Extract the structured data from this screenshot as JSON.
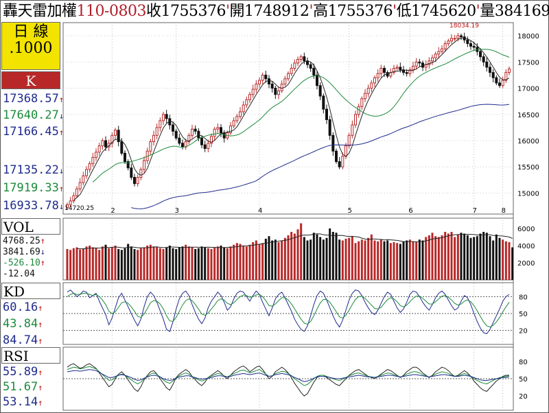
{
  "header": {
    "name": "轟天雷",
    "index": "加權",
    "code": "110-0803",
    "close_lbl": "收",
    "close": "1755376",
    "open_lbl": "開",
    "open": "1748912",
    "high_lbl": "高",
    "high": "1755376",
    "low_lbl": "低",
    "low": "1745620",
    "vol_lbl": "量",
    "vol": "384169",
    "sep": "'"
  },
  "left": {
    "period": "日  線",
    "scale": ".1000",
    "k_label": "K",
    "vol_label": "VOL",
    "kd_label": "KD",
    "rsi_label": "RSI"
  },
  "colors": {
    "up": "#b82828",
    "down": "#111111",
    "ma_short": "#222222",
    "ma_mid": "#1b8a3a",
    "ma_long": "#1f2a8c",
    "panel_bg": "#f2e400",
    "k_bg": "#b82828"
  },
  "chart_data": [
    {
      "type": "candlestick",
      "panel": "price",
      "ylim": [
        14600,
        18250
      ],
      "yticks": [
        15000,
        15500,
        16000,
        16500,
        17000,
        17500,
        18000
      ],
      "x_month_labels": [
        "2",
        "3",
        "4",
        "5",
        "6",
        "7",
        "8"
      ],
      "annotations": [
        {
          "text": "18034.19",
          "kind": "high"
        },
        {
          "text": "14720.25",
          "kind": "low"
        }
      ],
      "legend_values": [
        {
          "value": "17368.57",
          "dir": "up",
          "color": "blue"
        },
        {
          "value": "17640.27",
          "dir": "down",
          "color": "green"
        },
        {
          "value": "17166.45",
          "dir": "up",
          "color": "blue"
        },
        {
          "value": "17135.22",
          "dir": "down",
          "color": "blue"
        },
        {
          "value": "17919.33",
          "dir": "up",
          "color": "green"
        },
        {
          "value": "16933.78",
          "dir": "down",
          "color": "blue"
        }
      ],
      "close_path": [
        14780,
        14850,
        14950,
        15080,
        15200,
        15330,
        15450,
        15560,
        15680,
        15780,
        15900,
        16000,
        15880,
        15950,
        16100,
        16200,
        15980,
        15760,
        15600,
        15480,
        15300,
        15180,
        15300,
        15450,
        15620,
        15800,
        15980,
        16100,
        16250,
        16380,
        16500,
        16420,
        16300,
        16180,
        16050,
        15950,
        15880,
        15980,
        16100,
        16220,
        16180,
        16050,
        15920,
        15850,
        15950,
        16080,
        16220,
        16250,
        16150,
        16050,
        16150,
        16280,
        16380,
        16460,
        16550,
        16680,
        16780,
        16880,
        16980,
        17080,
        17150,
        17250,
        17180,
        17080,
        17000,
        16880,
        16950,
        17080,
        17180,
        17280,
        17380,
        17480,
        17550,
        17600,
        17520,
        17450,
        17380,
        17250,
        17050,
        16850,
        16600,
        16400,
        16100,
        15800,
        15600,
        15500,
        15700,
        15900,
        16100,
        16300,
        16500,
        16650,
        16800,
        16900,
        17000,
        17100,
        17200,
        17280,
        17380,
        17300,
        17230,
        17300,
        17380,
        17400,
        17350,
        17300,
        17280,
        17350,
        17420,
        17500,
        17480,
        17400,
        17450,
        17520,
        17580,
        17650,
        17700,
        17750,
        17850,
        17900,
        17950,
        17950,
        18000,
        17980,
        17920,
        17850,
        17800,
        17780,
        17700,
        17600,
        17500,
        17400,
        17300,
        17200,
        17100,
        17050,
        17150,
        17300,
        17368
      ]
    },
    {
      "type": "bar",
      "panel": "volume",
      "ylim": [
        0,
        7200
      ],
      "yticks": [
        2000,
        4000,
        6000
      ],
      "legend_values": [
        {
          "value": "4768.25",
          "dir": "up",
          "color": "blk"
        },
        {
          "value": "3841.69",
          "dir": "down",
          "color": "blk"
        },
        {
          "value": "-526.10",
          "dir": "up",
          "color": "green"
        },
        {
          "value": "-12.04",
          "dir": "",
          "color": "blk"
        }
      ],
      "values": [
        3600,
        3500,
        3700,
        3800,
        3550,
        3650,
        3900,
        4000,
        3800,
        3700,
        3500,
        3900,
        4100,
        3700,
        3800,
        4000,
        3600,
        3500,
        3700,
        4200,
        3900,
        3600,
        3500,
        3700,
        3800,
        4000,
        4100,
        3900,
        3800,
        3700,
        3600,
        3800,
        4000,
        3700,
        3600,
        3800,
        3900,
        4100,
        3900,
        3800,
        3600,
        3700,
        3900,
        3800,
        3700,
        3600,
        3800,
        3900,
        4000,
        3800,
        3700,
        3900,
        4100,
        4300,
        4200,
        4000,
        3900,
        4100,
        4400,
        4600,
        4200,
        4300,
        4800,
        5100,
        4600,
        4700,
        4400,
        4600,
        4900,
        5200,
        5600,
        5400,
        5900,
        6600,
        5000,
        4600,
        4700,
        5500,
        5300,
        5000,
        4700,
        4900,
        6000,
        5600,
        5500,
        4700,
        4600,
        4800,
        4900,
        5100,
        4300,
        4500,
        4700,
        4600,
        4900,
        5300,
        4600,
        4500,
        4700,
        4500,
        4600,
        4300,
        4400,
        4300,
        4200,
        4500,
        4600,
        4700,
        4500,
        4400,
        4700,
        4600,
        5000,
        5200,
        5500,
        5100,
        5000,
        5200,
        5600,
        5400,
        5600,
        5000,
        5300,
        5500,
        5400,
        5200,
        4900,
        5000,
        5100,
        5400,
        5600,
        5500,
        5100,
        4600,
        5300,
        4900,
        4700,
        4500,
        4400,
        3800
      ]
    },
    {
      "type": "line",
      "panel": "kd",
      "ylim": [
        0,
        100
      ],
      "yticks": [
        20,
        50,
        80
      ],
      "legend_values": [
        {
          "value": "60.16",
          "dir": "up",
          "color": "blue"
        },
        {
          "value": "43.84",
          "dir": "up",
          "color": "green"
        },
        {
          "value": "84.74",
          "dir": "up",
          "color": "blue"
        }
      ],
      "series": [
        {
          "name": "K",
          "values": [
            88,
            92,
            86,
            80,
            84,
            90,
            88,
            78,
            82,
            86,
            72,
            60,
            48,
            30,
            42,
            60,
            78,
            86,
            74,
            62,
            50,
            38,
            28,
            40,
            62,
            80,
            88,
            82,
            70,
            55,
            40,
            22,
            18,
            35,
            58,
            76,
            86,
            90,
            82,
            66,
            52,
            40,
            32,
            42,
            60,
            72,
            80,
            88,
            82,
            70,
            56,
            62,
            76,
            86,
            90,
            88,
            80,
            72,
            82,
            90,
            84,
            70,
            58,
            46,
            60,
            76,
            84,
            88,
            78,
            66,
            54,
            40,
            30,
            22,
            18,
            28,
            46,
            66,
            82,
            90,
            86,
            74,
            60,
            46,
            34,
            26,
            38,
            56,
            74,
            86,
            92,
            90,
            82,
            70,
            60,
            52,
            48,
            56,
            68,
            80,
            88,
            84,
            72,
            60,
            52,
            58,
            70,
            84,
            90,
            88,
            80,
            70,
            62,
            56,
            66,
            78,
            86,
            90,
            84,
            74,
            64,
            56,
            60,
            72,
            82,
            78,
            66,
            50,
            36,
            24,
            16,
            14,
            22,
            34,
            46,
            58,
            72,
            80,
            84
          ]
        },
        {
          "name": "D",
          "values": [
            80,
            84,
            86,
            84,
            84,
            86,
            86,
            84,
            82,
            84,
            80,
            74,
            66,
            54,
            50,
            53,
            61,
            69,
            71,
            68,
            62,
            54,
            45,
            43,
            49,
            59,
            69,
            73,
            72,
            67,
            58,
            46,
            37,
            36,
            43,
            54,
            65,
            73,
            76,
            73,
            66,
            58,
            49,
            47,
            51,
            58,
            65,
            73,
            76,
            74,
            68,
            66,
            69,
            75,
            80,
            83,
            82,
            79,
            80,
            83,
            84,
            80,
            73,
            64,
            63,
            67,
            73,
            78,
            78,
            74,
            67,
            58,
            49,
            40,
            33,
            31,
            36,
            46,
            58,
            69,
            75,
            75,
            70,
            62,
            53,
            44,
            42,
            47,
            56,
            66,
            75,
            80,
            81,
            77,
            71,
            65,
            59,
            58,
            61,
            68,
            75,
            78,
            76,
            71,
            64,
            62,
            65,
            71,
            77,
            81,
            81,
            77,
            72,
            67,
            67,
            71,
            76,
            81,
            82,
            79,
            74,
            68,
            65,
            67,
            72,
            74,
            71,
            64,
            55,
            45,
            35,
            28,
            26,
            29,
            35,
            43,
            53,
            62,
            70
          ]
        }
      ]
    },
    {
      "type": "line",
      "panel": "rsi",
      "ylim": [
        0,
        100
      ],
      "yticks": [
        20,
        50,
        80
      ],
      "legend_values": [
        {
          "value": "55.89",
          "dir": "up",
          "color": "blue"
        },
        {
          "value": "51.67",
          "dir": "up",
          "color": "green"
        },
        {
          "value": "53.14",
          "dir": "up",
          "color": "blue"
        }
      ],
      "series": [
        {
          "name": "RSI6",
          "values": [
            70,
            74,
            76,
            72,
            68,
            70,
            74,
            76,
            72,
            68,
            60,
            52,
            44,
            36,
            40,
            50,
            58,
            62,
            56,
            48,
            40,
            32,
            28,
            36,
            48,
            56,
            62,
            64,
            58,
            50,
            42,
            34,
            30,
            40,
            52,
            58,
            62,
            66,
            62,
            54,
            48,
            42,
            38,
            44,
            52,
            56,
            60,
            64,
            60,
            54,
            50,
            56,
            62,
            66,
            70,
            72,
            68,
            62,
            66,
            70,
            72,
            66,
            58,
            50,
            54,
            62,
            66,
            70,
            66,
            60,
            52,
            42,
            34,
            26,
            20,
            24,
            34,
            44,
            52,
            56,
            56,
            52,
            48,
            44,
            40,
            38,
            44,
            50,
            56,
            60,
            64,
            66,
            62,
            58,
            54,
            52,
            50,
            54,
            58,
            62,
            66,
            64,
            60,
            56,
            52,
            56,
            62,
            66,
            70,
            70,
            66,
            60,
            56,
            52,
            56,
            62,
            66,
            70,
            68,
            64,
            58,
            54,
            56,
            60,
            64,
            60,
            54,
            46,
            40,
            34,
            30,
            28,
            34,
            40,
            46,
            50,
            54,
            56,
            56
          ]
        },
        {
          "name": "RSI12",
          "values": [
            66,
            68,
            70,
            69,
            67,
            68,
            70,
            71,
            69,
            67,
            62,
            57,
            52,
            47,
            48,
            52,
            56,
            58,
            56,
            52,
            48,
            44,
            41,
            44,
            50,
            54,
            58,
            60,
            57,
            53,
            48,
            44,
            42,
            46,
            52,
            55,
            58,
            60,
            58,
            54,
            51,
            48,
            46,
            48,
            52,
            54,
            57,
            59,
            58,
            55,
            53,
            56,
            59,
            61,
            64,
            65,
            63,
            60,
            62,
            64,
            66,
            62,
            58,
            54,
            55,
            59,
            61,
            63,
            62,
            59,
            55,
            50,
            46,
            42,
            38,
            40,
            45,
            50,
            54,
            56,
            56,
            54,
            52,
            50,
            48,
            47,
            49,
            52,
            55,
            57,
            59,
            60,
            58,
            56,
            54,
            53,
            52,
            54,
            56,
            58,
            60,
            59,
            57,
            55,
            53,
            55,
            58,
            60,
            62,
            62,
            60,
            57,
            55,
            53,
            55,
            58,
            60,
            62,
            61,
            59,
            56,
            54,
            55,
            57,
            59,
            57,
            54,
            50,
            47,
            44,
            42,
            41,
            44,
            47,
            50,
            52,
            53,
            54,
            55
          ]
        },
        {
          "name": "RSI24",
          "values": [
            62,
            63,
            64,
            64,
            63,
            64,
            65,
            66,
            65,
            64,
            61,
            58,
            55,
            52,
            52,
            54,
            56,
            57,
            56,
            54,
            52,
            49,
            47,
            48,
            51,
            53,
            55,
            56,
            55,
            53,
            50,
            48,
            47,
            48,
            51,
            53,
            54,
            55,
            55,
            53,
            52,
            50,
            49,
            50,
            51,
            52,
            54,
            55,
            55,
            54,
            53,
            54,
            56,
            57,
            58,
            59,
            58,
            57,
            58,
            59,
            60,
            58,
            56,
            54,
            55,
            57,
            58,
            59,
            58,
            57,
            55,
            52,
            50,
            47,
            45,
            46,
            48,
            51,
            53,
            54,
            54,
            53,
            52,
            51,
            50,
            50,
            51,
            52,
            53,
            54,
            55,
            56,
            55,
            54,
            53,
            53,
            52,
            53,
            54,
            55,
            56,
            56,
            55,
            54,
            53,
            54,
            55,
            56,
            57,
            57,
            56,
            55,
            54,
            53,
            54,
            55,
            56,
            57,
            57,
            56,
            55,
            54,
            54,
            55,
            56,
            55,
            54,
            52,
            50,
            48,
            47,
            47,
            48,
            49,
            50,
            51,
            52,
            52,
            53
          ]
        }
      ]
    }
  ]
}
